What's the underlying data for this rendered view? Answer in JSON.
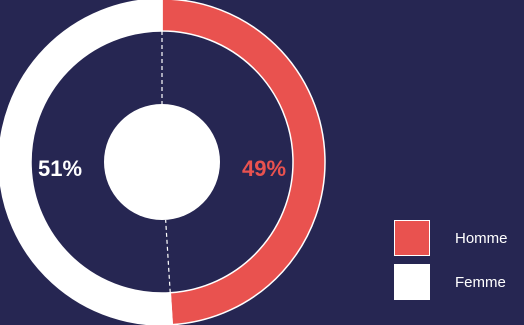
{
  "chart_data": {
    "type": "pie",
    "variant": "donut",
    "categories": [
      "Homme",
      "Femme"
    ],
    "values": [
      49,
      51
    ],
    "labels": [
      "49%",
      "51%"
    ],
    "colors": [
      "#e9524f",
      "#ffffff"
    ],
    "background": "#262652",
    "title": "",
    "legend": {
      "position": "right",
      "items": [
        "Homme",
        "Femme"
      ]
    }
  }
}
